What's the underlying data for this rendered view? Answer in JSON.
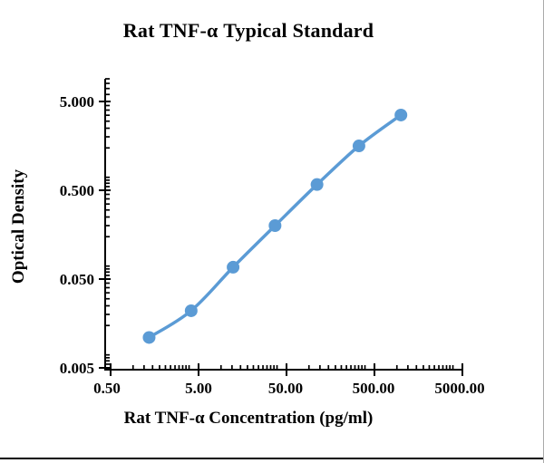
{
  "title": "Rat TNF-α Typical Standard",
  "chart_data": {
    "type": "line",
    "title": "Rat TNF-α Typical Standard",
    "xlabel": "Rat TNF-α Concentration (pg/ml)",
    "ylabel": "Optical Density",
    "x_scale": "log",
    "y_scale": "log",
    "x_ticks": [
      0.5,
      5,
      50,
      500,
      5000
    ],
    "x_tick_labels": [
      "0.50",
      "5.00",
      "50.00",
      "500.00",
      "5000.00"
    ],
    "y_ticks": [
      5,
      0.5,
      0.05,
      0.005
    ],
    "y_tick_labels": [
      "5.000",
      "0.500",
      "0.050",
      "0.005"
    ],
    "xlim": [
      0.5,
      5000
    ],
    "ylim": [
      0.005,
      9
    ],
    "grid": "off",
    "legend": "none",
    "series": [
      {
        "name": "Typical Standard",
        "x": [
          1.37,
          4.12,
          12.35,
          37.04,
          111.11,
          333.33,
          1000
        ],
        "y": [
          0.011,
          0.022,
          0.068,
          0.2,
          0.58,
          1.58,
          3.52
        ]
      }
    ],
    "series_color": "#5B9BD5",
    "axis_color": "#000000"
  }
}
